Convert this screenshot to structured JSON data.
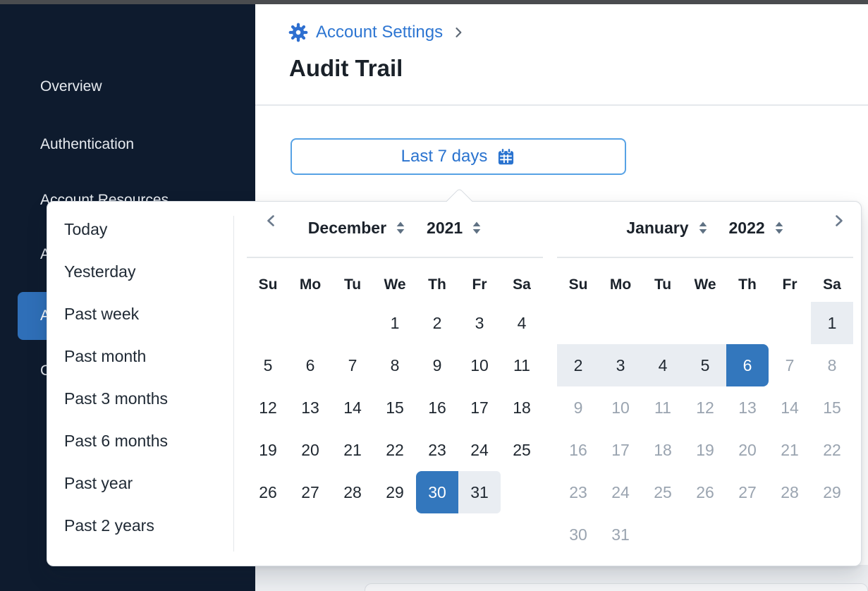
{
  "colors": {
    "sidebar_bg": "#0e1b2e",
    "sidebar_active_bg": "#2f6fb8",
    "accent_blue": "#2e76d2",
    "button_border_blue": "#57a2e5",
    "selected_day_bg": "#3377bd",
    "range_bg": "#e9edf2",
    "muted_day_text": "#9aa4b0",
    "dark_text": "#1b222b",
    "control_slate": "#64748b"
  },
  "sidebar": {
    "items": [
      {
        "label": "Overview",
        "active": false,
        "partial": false
      },
      {
        "label": "Authentication",
        "active": false,
        "partial": false
      },
      {
        "label": "Account Resources",
        "active": false,
        "partial": false
      },
      {
        "label": "A",
        "active": false,
        "partial": true
      },
      {
        "label": "A",
        "active": true,
        "partial": true
      },
      {
        "label": "C",
        "active": false,
        "partial": true
      }
    ]
  },
  "header": {
    "breadcrumb": "Account Settings",
    "breadcrumb_separator": ">",
    "title": "Audit Trail"
  },
  "date_filter": {
    "button_label": "Last 7 days"
  },
  "datepicker": {
    "presets": [
      "Today",
      "Yesterday",
      "Past week",
      "Past month",
      "Past 3 months",
      "Past 6 months",
      "Past year",
      "Past 2 years"
    ],
    "weekdays": [
      "Su",
      "Mo",
      "Tu",
      "We",
      "Th",
      "Fr",
      "Sa"
    ],
    "selected_range": {
      "start": "December 30, 2021",
      "end": "January 6, 2022"
    },
    "months": [
      {
        "name": "December",
        "year": "2021",
        "nav": "prev",
        "weeks": [
          [
            {
              "d": "",
              "s": "e"
            },
            {
              "d": "",
              "s": "e"
            },
            {
              "d": "",
              "s": "e"
            },
            {
              "d": "1",
              "s": "n"
            },
            {
              "d": "2",
              "s": "n"
            },
            {
              "d": "3",
              "s": "n"
            },
            {
              "d": "4",
              "s": "n"
            }
          ],
          [
            {
              "d": "5",
              "s": "n"
            },
            {
              "d": "6",
              "s": "n"
            },
            {
              "d": "7",
              "s": "n"
            },
            {
              "d": "8",
              "s": "n"
            },
            {
              "d": "9",
              "s": "n"
            },
            {
              "d": "10",
              "s": "n"
            },
            {
              "d": "11",
              "s": "n"
            }
          ],
          [
            {
              "d": "12",
              "s": "n"
            },
            {
              "d": "13",
              "s": "n"
            },
            {
              "d": "14",
              "s": "n"
            },
            {
              "d": "15",
              "s": "n"
            },
            {
              "d": "16",
              "s": "n"
            },
            {
              "d": "17",
              "s": "n"
            },
            {
              "d": "18",
              "s": "n"
            }
          ],
          [
            {
              "d": "19",
              "s": "n"
            },
            {
              "d": "20",
              "s": "n"
            },
            {
              "d": "21",
              "s": "n"
            },
            {
              "d": "22",
              "s": "n"
            },
            {
              "d": "23",
              "s": "n"
            },
            {
              "d": "24",
              "s": "n"
            },
            {
              "d": "25",
              "s": "n"
            }
          ],
          [
            {
              "d": "26",
              "s": "n"
            },
            {
              "d": "27",
              "s": "n"
            },
            {
              "d": "28",
              "s": "n"
            },
            {
              "d": "29",
              "s": "n"
            },
            {
              "d": "30",
              "s": "s"
            },
            {
              "d": "31",
              "s": "rc"
            },
            {
              "d": "",
              "s": "e"
            }
          ]
        ]
      },
      {
        "name": "January",
        "year": "2022",
        "nav": "next",
        "weeks": [
          [
            {
              "d": "",
              "s": "e"
            },
            {
              "d": "",
              "s": "e"
            },
            {
              "d": "",
              "s": "e"
            },
            {
              "d": "",
              "s": "e"
            },
            {
              "d": "",
              "s": "e"
            },
            {
              "d": "",
              "s": "e"
            },
            {
              "d": "1",
              "s": "r"
            }
          ],
          [
            {
              "d": "2",
              "s": "r"
            },
            {
              "d": "3",
              "s": "r"
            },
            {
              "d": "4",
              "s": "r"
            },
            {
              "d": "5",
              "s": "r"
            },
            {
              "d": "6",
              "s": "x"
            },
            {
              "d": "7",
              "s": "m"
            },
            {
              "d": "8",
              "s": "m"
            }
          ],
          [
            {
              "d": "9",
              "s": "m"
            },
            {
              "d": "10",
              "s": "m"
            },
            {
              "d": "11",
              "s": "m"
            },
            {
              "d": "12",
              "s": "m"
            },
            {
              "d": "13",
              "s": "m"
            },
            {
              "d": "14",
              "s": "m"
            },
            {
              "d": "15",
              "s": "m"
            }
          ],
          [
            {
              "d": "16",
              "s": "m"
            },
            {
              "d": "17",
              "s": "m"
            },
            {
              "d": "18",
              "s": "m"
            },
            {
              "d": "19",
              "s": "m"
            },
            {
              "d": "20",
              "s": "m"
            },
            {
              "d": "21",
              "s": "m"
            },
            {
              "d": "22",
              "s": "m"
            }
          ],
          [
            {
              "d": "23",
              "s": "m"
            },
            {
              "d": "24",
              "s": "m"
            },
            {
              "d": "25",
              "s": "m"
            },
            {
              "d": "26",
              "s": "m"
            },
            {
              "d": "27",
              "s": "m"
            },
            {
              "d": "28",
              "s": "m"
            },
            {
              "d": "29",
              "s": "m"
            }
          ],
          [
            {
              "d": "30",
              "s": "m"
            },
            {
              "d": "31",
              "s": "m"
            },
            {
              "d": "",
              "s": "e"
            },
            {
              "d": "",
              "s": "e"
            },
            {
              "d": "",
              "s": "e"
            },
            {
              "d": "",
              "s": "e"
            },
            {
              "d": "",
              "s": "e"
            }
          ]
        ]
      }
    ]
  }
}
